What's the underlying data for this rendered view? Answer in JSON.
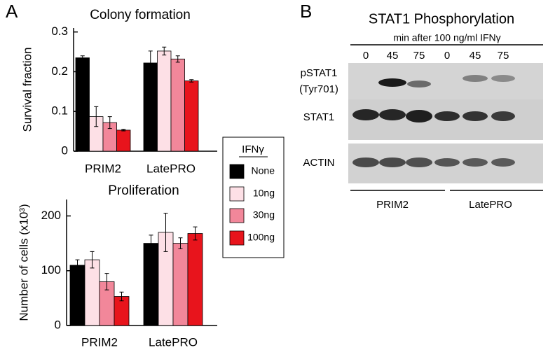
{
  "chart_data": [
    {
      "type": "bar",
      "panel": "A",
      "title": "Colony formation",
      "y_label": "Survival fraction",
      "categories": [
        "PRIM2",
        "LatePRO"
      ],
      "ylim": [
        0,
        0.31
      ],
      "yticks": [
        0,
        0.1,
        0.2,
        0.3
      ],
      "legend_title": "IFNγ",
      "series": [
        {
          "name": "None",
          "color": "#000000",
          "values": [
            0.235,
            0.222
          ],
          "errors": [
            0.005,
            0.03
          ]
        },
        {
          "name": "10ng",
          "color": "#fde0e6",
          "values": [
            0.087,
            0.252
          ],
          "errors": [
            0.025,
            0.01
          ]
        },
        {
          "name": "30ng",
          "color": "#f2879a",
          "values": [
            0.072,
            0.232
          ],
          "errors": [
            0.015,
            0.008
          ]
        },
        {
          "name": "100ng",
          "color": "#e8141c",
          "values": [
            0.053,
            0.177
          ],
          "errors": [
            0.002,
            0.003
          ]
        }
      ]
    },
    {
      "type": "bar",
      "title": "Proliferation",
      "y_label": "Number of cells (x10³)",
      "categories": [
        "PRIM2",
        "LatePRO"
      ],
      "ylim": [
        0,
        230
      ],
      "yticks": [
        0,
        100,
        200
      ],
      "series": [
        {
          "color": "#000000",
          "values": [
            110,
            150
          ],
          "errors": [
            10,
            15
          ]
        },
        {
          "color": "#fde0e6",
          "values": [
            120,
            170
          ],
          "errors": [
            15,
            35
          ]
        },
        {
          "color": "#f2879a",
          "values": [
            80,
            150
          ],
          "errors": [
            15,
            10
          ]
        },
        {
          "color": "#e8141c",
          "values": [
            53,
            168
          ],
          "errors": [
            8,
            12
          ]
        }
      ]
    }
  ],
  "blot": {
    "panel": "B",
    "title": "STAT1 Phosphorylation",
    "subtitle": "min after 100 ng/ml IFNγ",
    "lanes": [
      "0",
      "45",
      "75",
      "0",
      "45",
      "75"
    ],
    "rows": [
      [
        "pSTAT1",
        "(Tyr701)"
      ],
      [
        "STAT1"
      ],
      [
        "ACTIN"
      ]
    ],
    "groups": [
      "PRIM2",
      "LatePRO"
    ]
  }
}
